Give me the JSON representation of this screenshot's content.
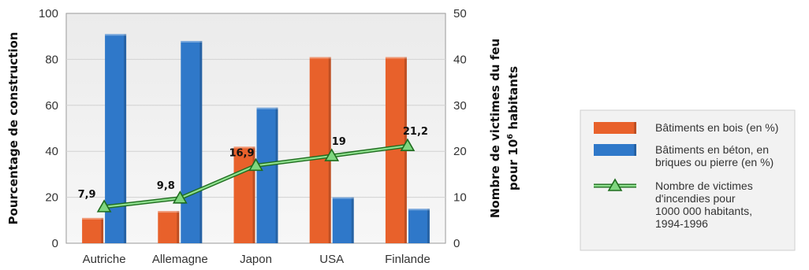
{
  "chart_data": {
    "type": "bar",
    "categories": [
      "Autriche",
      "Allemagne",
      "Japon",
      "USA",
      "Finlande"
    ],
    "series": [
      {
        "name": "Bâtiments en bois (en %)",
        "kind": "bar",
        "axis": "left",
        "color": "#e8612b",
        "values": [
          11,
          14,
          42,
          81,
          81
        ]
      },
      {
        "name": "Bâtiments en béton, en briques ou pierre (en %)",
        "kind": "bar",
        "axis": "left",
        "color": "#2f78c9",
        "values": [
          91,
          88,
          59,
          20,
          15
        ]
      },
      {
        "name": "Nombre de victimes d'incendies pour 1000 000 habitants, 1994-1996",
        "kind": "line",
        "axis": "right",
        "color": "#2e9d2e",
        "values": [
          7.9,
          9.8,
          16.9,
          19,
          21.2
        ]
      }
    ],
    "data_labels": [
      "7,9",
      "9,8",
      "16,9",
      "19",
      "21,2"
    ],
    "ylabel": "Pourcentage de construction",
    "ylabel_right_line1": "Nombre de victimes du feu",
    "ylabel_right_line2_pre": "pour 10",
    "ylabel_right_line2_sup": "6",
    "ylabel_right_line2_post": " habitants",
    "ylim": [
      0,
      100
    ],
    "ylim_right": [
      0,
      50
    ],
    "yticks": [
      "0",
      "20",
      "40",
      "60",
      "80",
      "100"
    ],
    "yticks_right": [
      "0",
      "10",
      "20",
      "30",
      "40",
      "50"
    ],
    "grid": true,
    "legend_position": "right",
    "legend": [
      {
        "label_lines": [
          "Bâtiments en bois (en %)"
        ],
        "color": "#e8612b",
        "kind": "bar"
      },
      {
        "label_lines": [
          "Bâtiments en béton, en",
          "briques ou pierre (en %)"
        ],
        "color": "#2f78c9",
        "kind": "bar"
      },
      {
        "label_lines": [
          "Nombre de victimes",
          "d'incendies pour",
          "1000 000 habitants,",
          "1994-1996"
        ],
        "color": "#2e9d2e",
        "kind": "line"
      }
    ]
  }
}
